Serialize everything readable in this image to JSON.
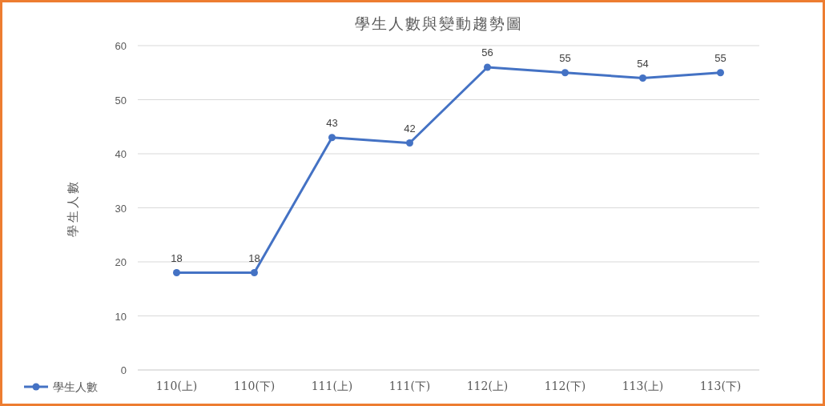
{
  "chart_data": {
    "type": "line",
    "title": "學生人數與變動趨勢圖",
    "ylabel": "學生人數",
    "categories": [
      "110(上)",
      "110(下)",
      "111(上)",
      "111(下)",
      "112(上)",
      "112(下)",
      "113(上)",
      "113(下)"
    ],
    "series": [
      {
        "name": "學生人數",
        "color": "#4472c4",
        "values": [
          18,
          18,
          43,
          42,
          56,
          55,
          54,
          55
        ]
      }
    ],
    "ylim": [
      0,
      60
    ],
    "yticks": [
      0,
      10,
      20,
      30,
      40,
      50,
      60
    ],
    "grid": "y",
    "legend": "bottom left",
    "marker": "circle",
    "line_style": "solid",
    "data_labels": true
  }
}
